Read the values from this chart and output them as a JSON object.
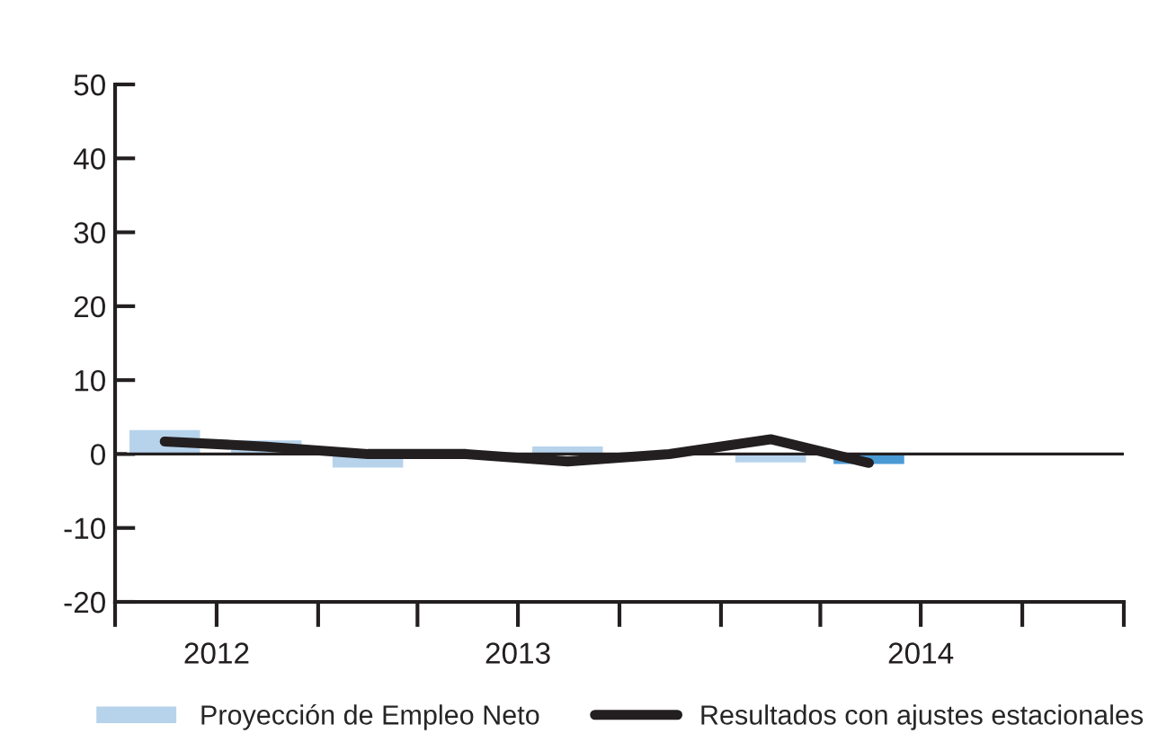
{
  "chart_data": {
    "type": "bar",
    "x": [
      "2012-08-15",
      "2012-11-15",
      "2013-02-15",
      "2013-05-15",
      "2013-08-15",
      "2013-11-15",
      "2014-02-15",
      "2014-05-15"
    ],
    "series": [
      {
        "name": "Proyección de Empleo Neto",
        "colors": [
          "#b7d3ec",
          "#b7d3ec",
          "#b7d3ec",
          null,
          "#b7d3ec",
          null,
          "#b7d3ec",
          "#4a9ad4"
        ],
        "color": "#b7d3ec",
        "values": [
          3.4,
          2,
          -2,
          null,
          1.2,
          null,
          -1.3,
          -1.5
        ]
      },
      {
        "name": "Resultados con ajustes estacionales",
        "type": "line",
        "color": "#231f20",
        "values": [
          1.7,
          1,
          0,
          0,
          -1,
          0,
          2,
          -1.2
        ]
      }
    ],
    "xlim": [
      "2012-07-01",
      "2015-01-01"
    ],
    "xticks": [
      {
        "value": "2012-07-01",
        "label": null
      },
      {
        "value": "2012-10-01",
        "label": "2012"
      },
      {
        "value": "2013-01-01",
        "label": null
      },
      {
        "value": "2013-04-01",
        "label": null
      },
      {
        "value": "2013-07-01",
        "label": "2013"
      },
      {
        "value": "2013-10-01",
        "label": null
      },
      {
        "value": "2014-01-01",
        "label": null
      },
      {
        "value": "2014-04-01",
        "label": null
      },
      {
        "value": "2014-07-01",
        "label": "2014"
      },
      {
        "value": "2014-10-01",
        "label": null
      },
      {
        "value": "2015-01-01",
        "label": null
      }
    ],
    "ylim": [
      -20,
      50
    ],
    "yticks": [
      -20,
      -10,
      0,
      10,
      20,
      30,
      40,
      50
    ],
    "ref_lines": [
      {
        "axis": "y",
        "value": 0,
        "color": "#231f20"
      }
    ],
    "legend": "bottom"
  }
}
